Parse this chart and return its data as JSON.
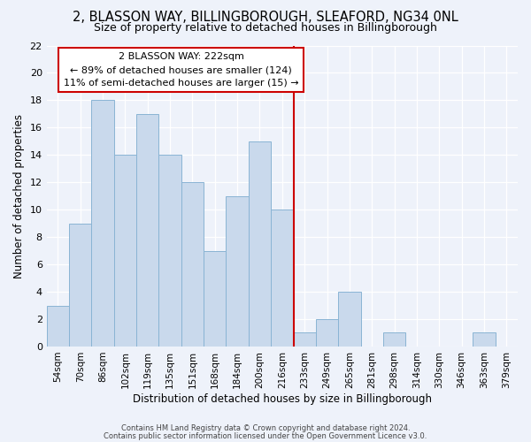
{
  "title1": "2, BLASSON WAY, BILLINGBOROUGH, SLEAFORD, NG34 0NL",
  "title2": "Size of property relative to detached houses in Billingborough",
  "xlabel": "Distribution of detached houses by size in Billingborough",
  "ylabel": "Number of detached properties",
  "categories": [
    "54sqm",
    "70sqm",
    "86sqm",
    "102sqm",
    "119sqm",
    "135sqm",
    "151sqm",
    "168sqm",
    "184sqm",
    "200sqm",
    "216sqm",
    "233sqm",
    "249sqm",
    "265sqm",
    "281sqm",
    "298sqm",
    "314sqm",
    "330sqm",
    "346sqm",
    "363sqm",
    "379sqm"
  ],
  "values": [
    3,
    9,
    18,
    14,
    17,
    14,
    12,
    7,
    11,
    15,
    10,
    1,
    2,
    4,
    0,
    1,
    0,
    0,
    0,
    1,
    0
  ],
  "bar_color": "#c9d9ec",
  "bar_edge_color": "#8ab4d4",
  "vline_color": "#cc0000",
  "annotation_text": "2 BLASSON WAY: 222sqm\n← 89% of detached houses are smaller (124)\n11% of semi-detached houses are larger (15) →",
  "annotation_box_color": "#cc0000",
  "footer1": "Contains HM Land Registry data © Crown copyright and database right 2024.",
  "footer2": "Contains public sector information licensed under the Open Government Licence v3.0.",
  "ylim": [
    0,
    22
  ],
  "yticks": [
    0,
    2,
    4,
    6,
    8,
    10,
    12,
    14,
    16,
    18,
    20,
    22
  ],
  "background_color": "#eef2fa",
  "grid_color": "#ffffff"
}
